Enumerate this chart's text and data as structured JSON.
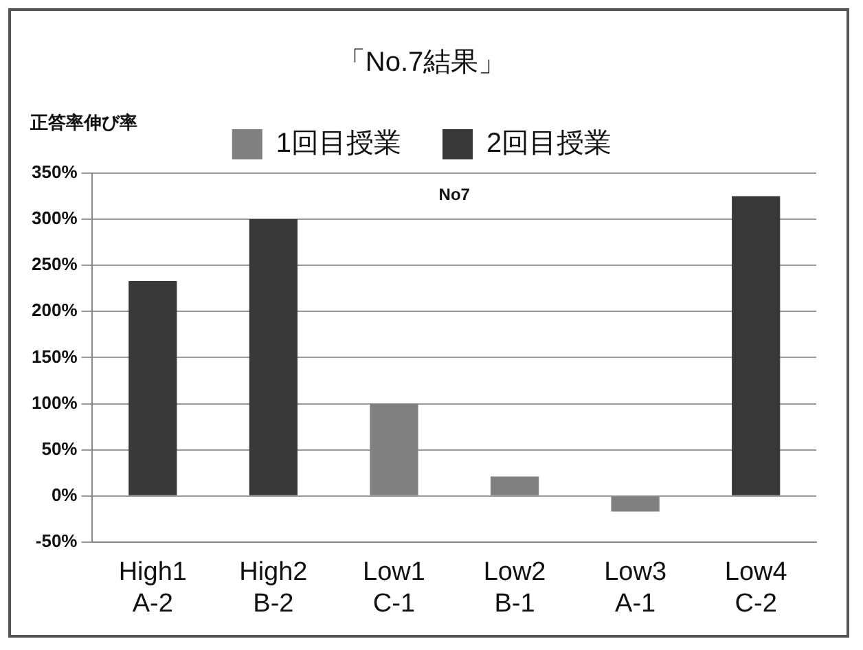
{
  "chart_data": {
    "type": "bar",
    "title": "「No.7結果」",
    "ylabel": "正答率伸び率",
    "categories": [
      "High1\nA-2",
      "High2\nB-2",
      "Low1\nC-1",
      "Low2\nB-1",
      "Low3\nA-1",
      "Low4\nC-2"
    ],
    "series": [
      {
        "name": "1回目授業",
        "color": "#808080",
        "values": [
          null,
          null,
          100,
          21,
          -17,
          null
        ]
      },
      {
        "name": "2回目授業",
        "color": "#383838",
        "values": [
          233,
          300,
          null,
          null,
          null,
          325
        ]
      }
    ],
    "ylim": [
      -50,
      350
    ],
    "yticks": [
      {
        "value": -50,
        "label": "-50%"
      },
      {
        "value": 0,
        "label": "0%"
      },
      {
        "value": 50,
        "label": "50%"
      },
      {
        "value": 100,
        "label": "100%"
      },
      {
        "value": 150,
        "label": "150%"
      },
      {
        "value": 200,
        "label": "200%"
      },
      {
        "value": 250,
        "label": "250%"
      },
      {
        "value": 300,
        "label": "300%"
      },
      {
        "value": 350,
        "label": "350%"
      }
    ],
    "annotations": [
      "No7"
    ],
    "grid": "y",
    "legend": "top"
  }
}
